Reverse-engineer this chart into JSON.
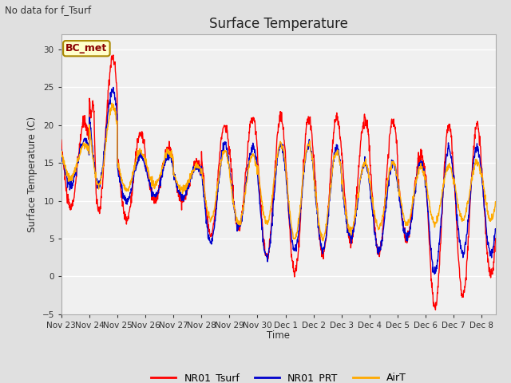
{
  "title": "Surface Temperature",
  "ylabel": "Surface Temperature (C)",
  "xlabel": "Time",
  "top_left_text": "No data for f_Tsurf",
  "annotation_text": "BC_met",
  "ylim": [
    -5,
    32
  ],
  "yticks": [
    -5,
    0,
    5,
    10,
    15,
    20,
    25,
    30
  ],
  "x_tick_labels": [
    "Nov 23",
    "Nov 24",
    "Nov 25",
    "Nov 26",
    "Nov 27",
    "Nov 28",
    "Nov 29",
    "Nov 30",
    "Dec 1",
    "Dec 2",
    "Dec 3",
    "Dec 4",
    "Dec 5",
    "Dec 6",
    "Dec 7",
    "Dec 8"
  ],
  "line_colors": {
    "NR01_Tsurf": "#ff0000",
    "NR01_PRT": "#0000cc",
    "AirT": "#ffaa00"
  },
  "line_widths": {
    "NR01_Tsurf": 1.0,
    "NR01_PRT": 1.0,
    "AirT": 1.0
  },
  "fig_bg_color": "#e0e0e0",
  "plot_bg_color": "#f0f0f0",
  "grid_color": "#ffffff",
  "annotation_bg": "#ffffcc",
  "annotation_border": "#aa8800",
  "annotation_text_color": "#8B0000"
}
